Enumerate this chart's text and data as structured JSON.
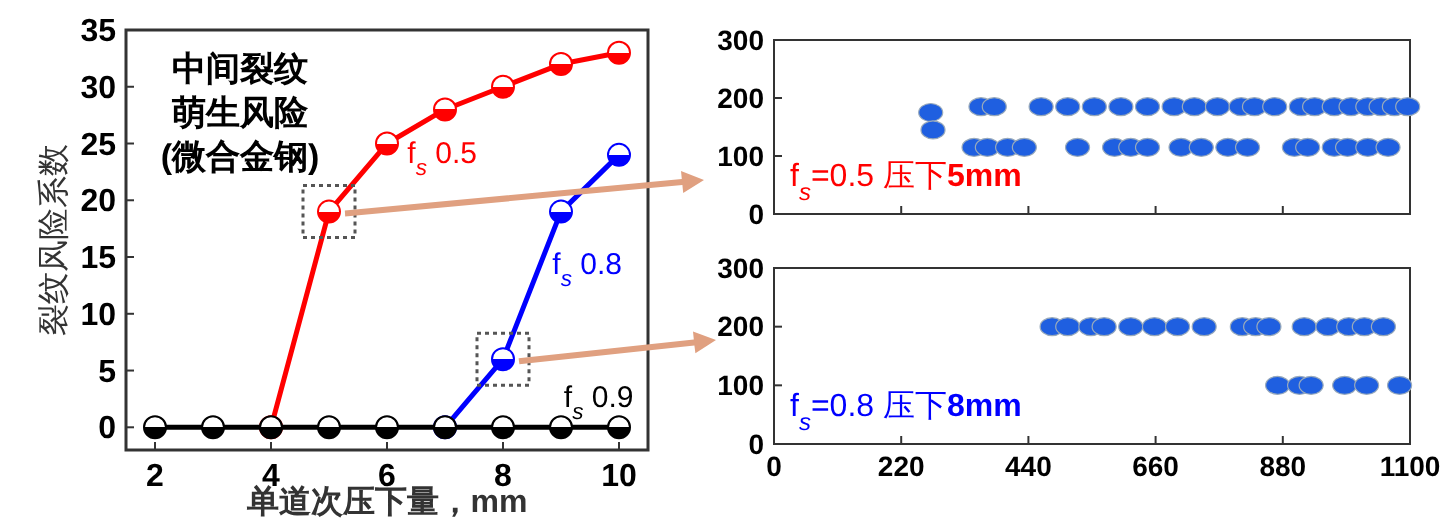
{
  "chart_data": [
    {
      "type": "line",
      "xlabel": "单道次压下量，mm",
      "ylabel": "裂纹风险系数",
      "annotations": [
        "中间裂纹",
        "萌生风险",
        "(微合金钢)"
      ],
      "xlim": [
        1.5,
        10.5
      ],
      "ylim": [
        -2,
        35
      ],
      "xticks": [
        2,
        4,
        6,
        8,
        10
      ],
      "yticks": [
        0,
        5,
        10,
        15,
        20,
        25,
        30,
        35
      ],
      "marker": "circle",
      "grid": false,
      "series": [
        {
          "name": "f$_{s}$ 0.5",
          "color": "#ff0000",
          "x": [
            4,
            5,
            6,
            7,
            8,
            9,
            10
          ],
          "values": [
            0,
            19,
            25,
            28,
            30,
            32,
            33
          ]
        },
        {
          "name": "f$_{s}$ 0.8",
          "color": "#0000ff",
          "x": [
            7,
            8,
            9,
            10
          ],
          "values": [
            0,
            6,
            19,
            24
          ]
        },
        {
          "name": "f$_{s}$ 0.9",
          "color": "#000000",
          "x": [
            2,
            3,
            4,
            5,
            6,
            7,
            8,
            9,
            10
          ],
          "values": [
            0,
            0,
            0,
            0,
            0,
            0,
            0,
            0,
            0
          ]
        }
      ]
    },
    {
      "type": "scatter",
      "annotations": [
        "f$_{s}$=0.5 压下**5mm**"
      ],
      "xlim": [
        0,
        1100
      ],
      "ylim": [
        0,
        300
      ],
      "xticks": [
        0,
        220,
        440,
        660,
        880,
        1100
      ],
      "yticks": [
        0,
        100,
        200,
        300
      ],
      "tick_labels": "y",
      "grid": false,
      "series": [
        {
          "color": "#1f5fe0",
          "x": [
            271,
            275,
            358,
            381,
            462,
            508,
            554,
            600,
            646,
            692,
            727,
            767,
            808,
            831,
            866,
            912,
            935,
            969,
            998,
            1027,
            1050,
            1073,
            1096,
            346,
            369,
            404,
            433,
            525,
            589,
            617,
            646,
            704,
            739,
            785,
            819,
            900,
            923,
            969,
            992,
            1027,
            1062
          ],
          "values": [
            175,
            145,
            185,
            185,
            185,
            185,
            185,
            185,
            185,
            185,
            185,
            185,
            185,
            185,
            185,
            185,
            185,
            185,
            185,
            185,
            185,
            185,
            185,
            115,
            115,
            115,
            115,
            115,
            115,
            115,
            115,
            115,
            115,
            115,
            115,
            115,
            115,
            115,
            115,
            115,
            115
          ]
        }
      ]
    },
    {
      "type": "scatter",
      "annotations": [
        "f$_{s}$=0.8 压下**8mm**"
      ],
      "xlim": [
        0,
        1100
      ],
      "ylim": [
        0,
        300
      ],
      "xticks": [
        0,
        220,
        440,
        660,
        880,
        1100
      ],
      "yticks": [
        0,
        100,
        200,
        300
      ],
      "grid": false,
      "series": [
        {
          "color": "#1f5fe0",
          "x": [
            481,
            508,
            548,
            571,
            617,
            658,
            698,
            744,
            810,
            833,
            856,
            917,
            958,
            994,
            1021,
            1054,
            871,
            909,
            929,
            987,
            1025,
            1082
          ],
          "values": [
            200,
            200,
            200,
            200,
            200,
            200,
            200,
            200,
            200,
            200,
            200,
            200,
            200,
            200,
            200,
            200,
            100,
            100,
            100,
            100,
            100,
            100
          ]
        }
      ]
    }
  ]
}
